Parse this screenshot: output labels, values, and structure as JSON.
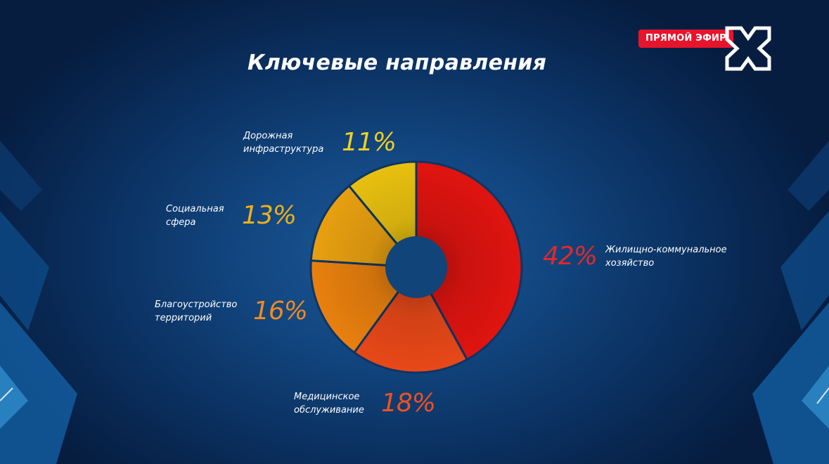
{
  "header": {
    "title": "Ключевые направления",
    "live_badge": "ПРЯМОЙ ЭФИР"
  },
  "chart_data": {
    "type": "pie",
    "title": "Ключевые направления",
    "donut": true,
    "slices": [
      {
        "label": "Жилищно-коммунальное хозяйство",
        "value": 42,
        "value_label": "42%",
        "color": "#e01410"
      },
      {
        "label": "Медицинское обслуживание",
        "value": 18,
        "value_label": "18%",
        "color": "#e84818"
      },
      {
        "label": "Благоустройство территорий",
        "value": 16,
        "value_label": "16%",
        "color": "#e8800e"
      },
      {
        "label": "Социальная сфера",
        "value": 13,
        "value_label": "13%",
        "color": "#e8a010"
      },
      {
        "label": "Дорожная инфраструктура",
        "value": 11,
        "value_label": "11%",
        "color": "#e8c010"
      }
    ]
  },
  "colors": {
    "label_42": "#e02a2a",
    "label_18": "#f0501e",
    "label_16": "#f08a20",
    "label_13": "#f0b018",
    "label_11": "#f0d020"
  }
}
